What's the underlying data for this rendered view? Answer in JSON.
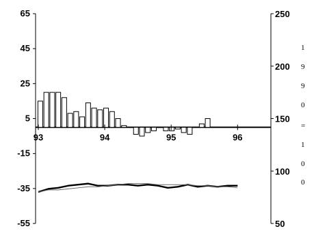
{
  "chart_data": {
    "type": "bar",
    "left_axis": {
      "ticks": [
        "65",
        "45",
        "25",
        "5",
        "-15",
        "-35",
        "-55"
      ],
      "values": [
        65,
        45,
        25,
        5,
        -15,
        -35,
        -55
      ],
      "ylim": [
        -55,
        65
      ]
    },
    "right_axis": {
      "ticks": [
        "250",
        "200",
        "150",
        "100",
        "50"
      ],
      "values": [
        250,
        200,
        150,
        100,
        50
      ],
      "ylim": [
        50,
        250
      ]
    },
    "x_axis": {
      "year_labels": [
        "93",
        "94",
        "95",
        "96"
      ],
      "year_positions": [
        93,
        94,
        95,
        96
      ],
      "xlim": [
        93,
        96.45
      ]
    },
    "bars": {
      "axis": "left",
      "x": [
        93.03,
        93.12,
        93.21,
        93.3,
        93.39,
        93.48,
        93.57,
        93.66,
        93.75,
        93.84,
        93.93,
        94.02,
        94.11,
        94.2,
        94.29,
        94.38,
        94.47,
        94.56,
        94.65,
        94.74,
        94.83,
        94.92,
        95.01,
        95.1,
        95.19,
        95.28,
        95.37,
        95.46,
        95.55,
        95.64,
        95.73,
        95.82,
        95.91,
        96.0
      ],
      "values": [
        15,
        20,
        20,
        20,
        17,
        8,
        9,
        6,
        14,
        11,
        10,
        11,
        9,
        5,
        1,
        0,
        -4,
        -5,
        -3,
        -2,
        0,
        -2,
        -2,
        -1,
        -3,
        -4,
        0,
        2,
        5,
        0,
        0,
        0,
        0,
        0
      ]
    },
    "series": [
      {
        "style": "thick",
        "color": "#000000",
        "axis": "right",
        "x": [
          93.0,
          93.15,
          93.3,
          93.45,
          93.6,
          93.75,
          93.9,
          94.05,
          94.2,
          94.35,
          94.5,
          94.65,
          94.8,
          94.95,
          95.1,
          95.25,
          95.4,
          95.55,
          95.7,
          95.85,
          96.0
        ],
        "values": [
          80,
          83,
          84,
          86,
          87,
          88,
          86,
          86,
          87,
          87,
          86,
          87,
          86,
          84,
          85,
          87,
          85,
          86,
          85,
          86,
          86
        ]
      },
      {
        "style": "thin",
        "color": "#666666",
        "axis": "right",
        "x": [
          93.0,
          93.15,
          93.3,
          93.45,
          93.6,
          93.75,
          93.9,
          94.05,
          94.2,
          94.35,
          94.5,
          94.65,
          94.8,
          94.95,
          95.1,
          95.25,
          95.4,
          95.55,
          95.7,
          95.85,
          96.0
        ],
        "values": [
          80,
          82,
          82,
          83,
          84,
          85,
          85,
          86,
          87,
          88,
          88,
          88,
          87,
          87,
          87,
          87,
          86,
          86,
          85,
          85,
          84
        ]
      }
    ],
    "grid": false,
    "legend": "none"
  },
  "side_labels": [
    "1",
    "9",
    "9",
    "0",
    "=",
    "1",
    "0",
    "0"
  ]
}
